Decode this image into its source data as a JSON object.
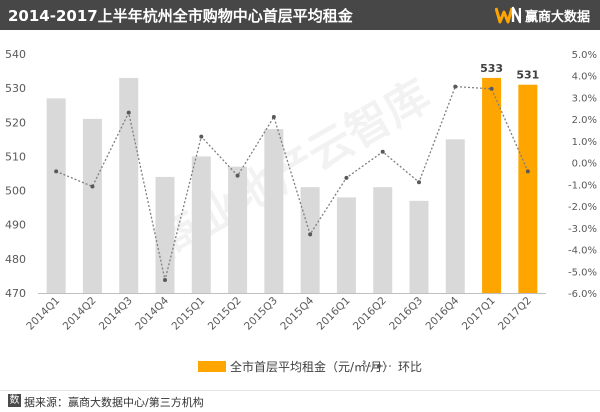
{
  "header": {
    "title": "2014-2017上半年杭州全市购物中心首层平均租金",
    "brand": "赢商大数据"
  },
  "footer": {
    "source_mark": "数",
    "source": "据来源：赢商大数据中心/第三方机构"
  },
  "watermark": "商业地产云智库",
  "colors": {
    "bar": "#d9d9d9",
    "bar_highlight": "#ffa500",
    "line": "#7f7f7f",
    "header_bg": "#474747"
  },
  "chart_data": {
    "type": "bar",
    "categories": [
      "2014Q1",
      "2014Q2",
      "2014Q3",
      "2014Q4",
      "2015Q1",
      "2015Q2",
      "2015Q3",
      "2015Q4",
      "2016Q1",
      "2016Q2",
      "2016Q3",
      "2016Q4",
      "2017Q1",
      "2017Q2"
    ],
    "series": [
      {
        "name": "全市首层平均租金（元/㎡/月）",
        "type": "bar",
        "axis": "left",
        "values": [
          527,
          521,
          533,
          504,
          510,
          507,
          518,
          501,
          498,
          501,
          497,
          515,
          533,
          531
        ],
        "highlight_indices": [
          12,
          13
        ],
        "labels": {
          "12": "533",
          "13": "531"
        }
      },
      {
        "name": "环比",
        "type": "line",
        "axis": "right",
        "values": [
          -0.4,
          -1.1,
          2.3,
          -5.4,
          1.2,
          -0.6,
          2.1,
          -3.3,
          -0.7,
          0.5,
          -0.9,
          3.5,
          3.4,
          -0.4
        ]
      }
    ],
    "ylim_left": [
      470,
      540
    ],
    "yticks_left": [
      470,
      480,
      490,
      500,
      510,
      520,
      530,
      540
    ],
    "ylim_right": [
      -6.0,
      5.0
    ],
    "yticks_right": [
      "-6.0%",
      "-5.0%",
      "-4.0%",
      "-3.0%",
      "-2.0%",
      "-1.0%",
      "0.0%",
      "1.0%",
      "2.0%",
      "3.0%",
      "4.0%",
      "5.0%"
    ],
    "grid": false,
    "legend": "bottom"
  }
}
